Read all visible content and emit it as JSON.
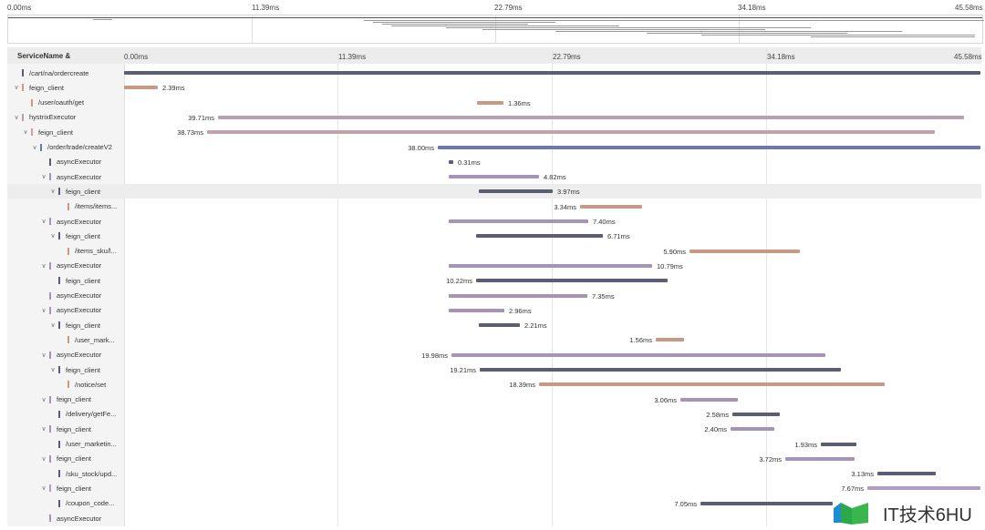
{
  "time_axis": {
    "ticks": [
      "0.00ms",
      "11.39ms",
      "22.79ms",
      "34.18ms",
      "45.58ms"
    ]
  },
  "header": {
    "service_col_label": "ServiceName &"
  },
  "colors": {
    "dark": "#5b5e73",
    "blue": "#6d78a8",
    "purple": "#a793b8",
    "tan": "#c89a86",
    "pinkish": "#b8a0b0",
    "light_purple": "#b39dc4"
  },
  "rows": [
    {
      "name": "/cart/na/ordercreate",
      "chevron": "",
      "depth": 0,
      "color": "#5b5e73",
      "dur": ""
    },
    {
      "name": "feign_client",
      "chevron": "v",
      "depth": 0,
      "color": "#c89a86",
      "dur": "2.39ms"
    },
    {
      "name": "/user/oauth/get",
      "chevron": "",
      "depth": 1,
      "color": "#c89a86",
      "dur": "1.36ms"
    },
    {
      "name": "hystrixExecutor",
      "chevron": "v",
      "depth": 0,
      "color": "#b8a0b0",
      "dur": "39.71ms"
    },
    {
      "name": "feign_client",
      "chevron": "v",
      "depth": 1,
      "color": "#c4a0a8",
      "dur": "38.73ms"
    },
    {
      "name": "/order/trade/createV2",
      "chevron": "v",
      "depth": 2,
      "color": "#6d78a8",
      "dur": "38.00ms"
    },
    {
      "name": "asyncExecutor",
      "chevron": "",
      "depth": 3,
      "color": "#5b5e73",
      "dur": "0.31ms"
    },
    {
      "name": "asyncExecutor",
      "chevron": "v",
      "depth": 3,
      "color": "#a793b8",
      "dur": "4.82ms"
    },
    {
      "name": "feign_client",
      "chevron": "v",
      "depth": 4,
      "color": "#5b5e73",
      "dur": "3.97ms"
    },
    {
      "name": "/items/items...",
      "chevron": "",
      "depth": 5,
      "color": "#c89a86",
      "dur": "3.34ms"
    },
    {
      "name": "asyncExecutor",
      "chevron": "v",
      "depth": 3,
      "color": "#a793b8",
      "dur": "7.40ms"
    },
    {
      "name": "feign_client",
      "chevron": "v",
      "depth": 4,
      "color": "#5b5e73",
      "dur": "6.71ms"
    },
    {
      "name": "/items_sku/l...",
      "chevron": "",
      "depth": 5,
      "color": "#c89a86",
      "dur": "5.90ms"
    },
    {
      "name": "asyncExecutor",
      "chevron": "v",
      "depth": 3,
      "color": "#a793b8",
      "dur": "10.79ms"
    },
    {
      "name": "feign_client",
      "chevron": "",
      "depth": 4,
      "color": "#5b5e73",
      "dur": "10.22ms"
    },
    {
      "name": "asyncExecutor",
      "chevron": "",
      "depth": 3,
      "color": "#a793b8",
      "dur": "7.35ms"
    },
    {
      "name": "asyncExecutor",
      "chevron": "v",
      "depth": 3,
      "color": "#a793b8",
      "dur": "2.96ms"
    },
    {
      "name": "feign_client",
      "chevron": "v",
      "depth": 4,
      "color": "#5b5e73",
      "dur": "2.21ms"
    },
    {
      "name": "/user_mark...",
      "chevron": "",
      "depth": 5,
      "color": "#c89a86",
      "dur": "1.56ms"
    },
    {
      "name": "asyncExecutor",
      "chevron": "v",
      "depth": 3,
      "color": "#a793b8",
      "dur": "19.98ms"
    },
    {
      "name": "feign_client",
      "chevron": "v",
      "depth": 4,
      "color": "#5b5e73",
      "dur": "19.21ms"
    },
    {
      "name": "/notice/set",
      "chevron": "",
      "depth": 5,
      "color": "#c89a86",
      "dur": "18.39ms"
    },
    {
      "name": "feign_client",
      "chevron": "v",
      "depth": 3,
      "color": "#a793b8",
      "dur": "3.06ms"
    },
    {
      "name": "/delivery/getFe...",
      "chevron": "",
      "depth": 4,
      "color": "#5b5e73",
      "dur": "2.58ms"
    },
    {
      "name": "feign_client",
      "chevron": "v",
      "depth": 3,
      "color": "#a793b8",
      "dur": "2.40ms"
    },
    {
      "name": "/user_marketin...",
      "chevron": "",
      "depth": 4,
      "color": "#5b5e73",
      "dur": "1.93ms"
    },
    {
      "name": "feign_client",
      "chevron": "v",
      "depth": 3,
      "color": "#a793b8",
      "dur": "3.72ms"
    },
    {
      "name": "/sku_stock/upd...",
      "chevron": "",
      "depth": 4,
      "color": "#5b5e73",
      "dur": "3.13ms"
    },
    {
      "name": "feign_client",
      "chevron": "v",
      "depth": 3,
      "color": "#b39dc4",
      "dur": "7.67ms"
    },
    {
      "name": "/coupon_code...",
      "chevron": "",
      "depth": 4,
      "color": "#5b5e73",
      "dur": "7.05ms"
    },
    {
      "name": "asyncExecutor",
      "chevron": "",
      "depth": 3,
      "color": "#a793b8",
      "dur": ""
    }
  ],
  "watermark": {
    "text": "IT技术6HU"
  }
}
